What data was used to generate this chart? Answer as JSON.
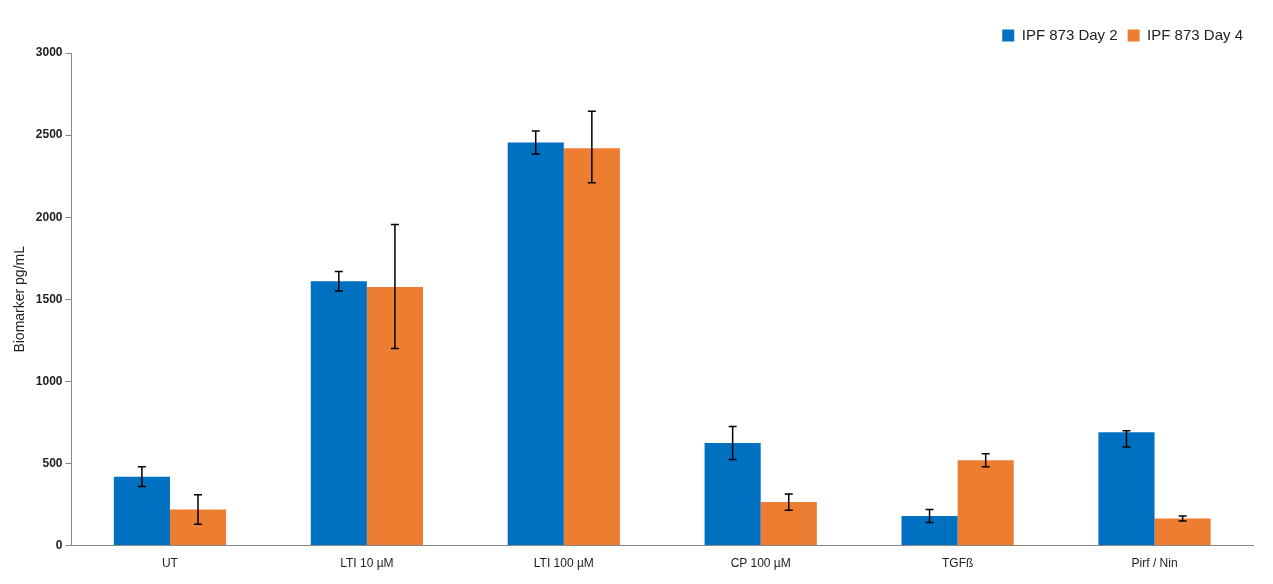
{
  "chart_data": {
    "type": "bar",
    "ylabel": "Biomarker pg/mL",
    "categories": [
      "UT",
      "LTI 10 µM",
      "LTI 100 µM",
      "CP 100 µM",
      "TGFß",
      "Pirf / Nin"
    ],
    "series": [
      {
        "name": "IPF 873 Day 2",
        "color": "#0070c0",
        "values": [
          420,
          1610,
          2455,
          625,
          180,
          690
        ],
        "errors": [
          60,
          60,
          70,
          100,
          40,
          [
            600,
            700
          ]
        ]
      },
      {
        "name": "IPF 873 Day 4",
        "color": "#ed7d31",
        "values": [
          220,
          1575,
          2420,
          265,
          520,
          165
        ],
        "errors": [
          90,
          [
            1200,
            1955
          ],
          [
            2210,
            2645
          ],
          50,
          40,
          15
        ]
      }
    ],
    "ylim": [
      0,
      3000
    ],
    "yticks": [
      0,
      500,
      1000,
      1500,
      2000,
      2500,
      3000
    ],
    "grid": false,
    "legend": "top right"
  }
}
